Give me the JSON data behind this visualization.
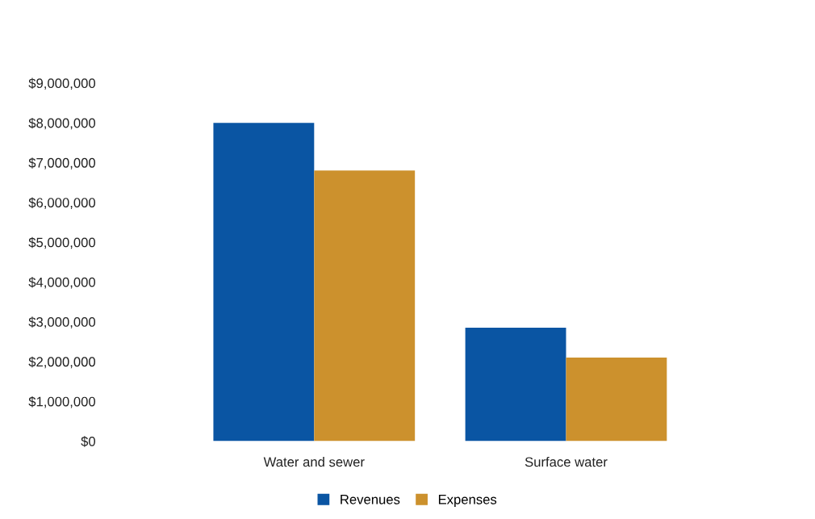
{
  "chart_data": {
    "type": "bar",
    "categories": [
      "Water and sewer",
      "Surface water"
    ],
    "series": [
      {
        "name": "Revenues",
        "color": "#0a55a3",
        "values": [
          8000000,
          2850000
        ]
      },
      {
        "name": "Expenses",
        "color": "#cc912d",
        "values": [
          6800000,
          2100000
        ]
      }
    ],
    "ylim": [
      0,
      9000000
    ],
    "yticks": [
      {
        "value": 0,
        "label": "$0"
      },
      {
        "value": 1000000,
        "label": "$1,000,000"
      },
      {
        "value": 2000000,
        "label": "$2,000,000"
      },
      {
        "value": 3000000,
        "label": "$3,000,000"
      },
      {
        "value": 4000000,
        "label": "$4,000,000"
      },
      {
        "value": 5000000,
        "label": "$5,000,000"
      },
      {
        "value": 6000000,
        "label": "$6,000,000"
      },
      {
        "value": 7000000,
        "label": "$7,000,000"
      },
      {
        "value": 8000000,
        "label": "$8,000,000"
      },
      {
        "value": 9000000,
        "label": "$9,000,000"
      }
    ],
    "legend": "bottom"
  }
}
